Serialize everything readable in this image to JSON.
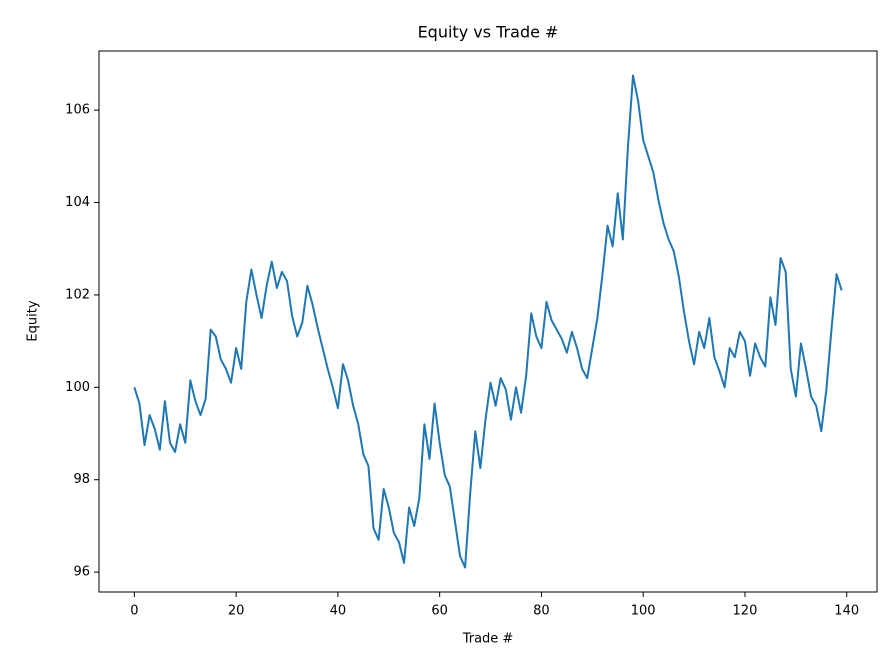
{
  "chart_data": {
    "type": "line",
    "title": "Equity vs Trade #",
    "xlabel": "Trade #",
    "ylabel": "Equity",
    "x": [
      0,
      1,
      2,
      3,
      4,
      5,
      6,
      7,
      8,
      9,
      10,
      11,
      12,
      13,
      14,
      15,
      16,
      17,
      18,
      19,
      20,
      21,
      22,
      23,
      24,
      25,
      26,
      27,
      28,
      29,
      30,
      31,
      32,
      33,
      34,
      35,
      36,
      37,
      38,
      39,
      40,
      41,
      42,
      43,
      44,
      45,
      46,
      47,
      48,
      49,
      50,
      51,
      52,
      53,
      54,
      55,
      56,
      57,
      58,
      59,
      60,
      61,
      62,
      63,
      64,
      65,
      66,
      67,
      68,
      69,
      70,
      71,
      72,
      73,
      74,
      75,
      76,
      77,
      78,
      79,
      80,
      81,
      82,
      83,
      84,
      85,
      86,
      87,
      88,
      89,
      90,
      91,
      92,
      93,
      94,
      95,
      96,
      97,
      98,
      99,
      100,
      101,
      102,
      103,
      104,
      105,
      106,
      107,
      108,
      109,
      110,
      111,
      112,
      113,
      114,
      115,
      116,
      117,
      118,
      119,
      120,
      121,
      122,
      123,
      124,
      125,
      126,
      127,
      128,
      129,
      130,
      131,
      132,
      133,
      134,
      135,
      136,
      137,
      138,
      139
    ],
    "series": [
      {
        "color": "#1f77b4",
        "values": [
          100.0,
          99.65,
          98.75,
          99.4,
          99.1,
          98.65,
          99.7,
          98.8,
          98.6,
          99.2,
          98.8,
          100.15,
          99.7,
          99.4,
          99.75,
          101.25,
          101.1,
          100.6,
          100.4,
          100.1,
          100.85,
          100.4,
          101.85,
          102.55,
          102.0,
          101.5,
          102.2,
          102.72,
          102.15,
          102.5,
          102.3,
          101.55,
          101.1,
          101.4,
          102.2,
          101.8,
          101.3,
          100.85,
          100.4,
          100.0,
          99.55,
          100.5,
          100.15,
          99.6,
          99.2,
          98.55,
          98.3,
          96.95,
          96.7,
          97.8,
          97.4,
          96.85,
          96.65,
          96.2,
          97.4,
          97.0,
          97.6,
          99.2,
          98.45,
          99.65,
          98.8,
          98.1,
          97.85,
          97.1,
          96.35,
          96.1,
          97.7,
          99.05,
          98.25,
          99.3,
          100.1,
          99.6,
          100.2,
          99.95,
          99.3,
          100.0,
          99.45,
          100.25,
          101.6,
          101.1,
          100.85,
          101.85,
          101.45,
          101.25,
          101.05,
          100.75,
          101.2,
          100.85,
          100.4,
          100.2,
          100.85,
          101.5,
          102.45,
          103.5,
          103.05,
          104.2,
          103.2,
          105.2,
          106.75,
          106.2,
          105.35,
          105.0,
          104.65,
          104.05,
          103.55,
          103.2,
          102.95,
          102.4,
          101.65,
          101.0,
          100.5,
          101.2,
          100.85,
          101.5,
          100.65,
          100.35,
          100.0,
          100.85,
          100.65,
          101.2,
          101.0,
          100.25,
          100.95,
          100.65,
          100.45,
          101.95,
          101.35,
          102.8,
          102.5,
          100.4,
          99.8,
          100.95,
          100.4,
          99.8,
          99.6,
          99.05,
          99.95,
          101.25,
          102.45,
          102.1
        ]
      }
    ],
    "xlim": [
      -6.95,
      145.95
    ],
    "xticks": [
      0,
      20,
      40,
      60,
      80,
      100,
      120,
      140
    ],
    "ylim": [
      95.57,
      107.28
    ],
    "yticks": [
      96,
      98,
      100,
      102,
      104,
      106
    ]
  }
}
